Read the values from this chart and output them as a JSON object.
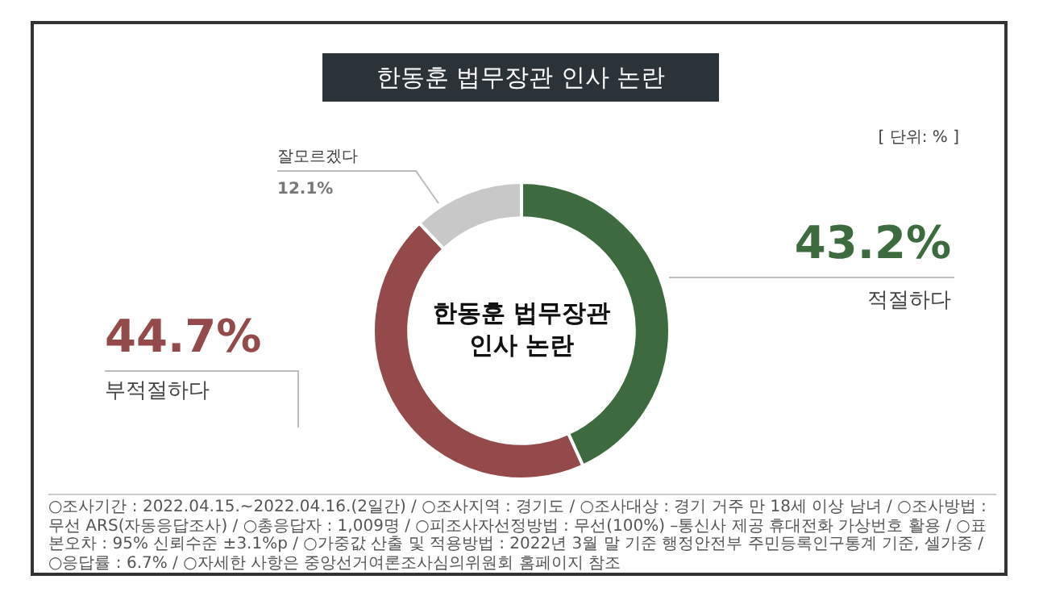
{
  "chart_data": {
    "type": "donut",
    "title": "한동훈 법무장관 인사 논란",
    "categories": [
      "적절하다",
      "부적절하다",
      "잘모르겠다"
    ],
    "values": [
      43.2,
      44.7,
      12.1
    ],
    "colors": [
      "#3d6b3f",
      "#944a4a",
      "#c8c8c8"
    ],
    "value_labels": [
      "43.2%",
      "44.7%",
      "12.1%"
    ],
    "legend": false,
    "annotations": [
      "[ 단위: % ]",
      "한동훈 법무장관\n인사 논란",
      "○조사기간 : 2022.04.15.~2022.04.16.(2일간) / ○조사지역 : 경기도 / ○조사대상 : 경기 거주 만 18세 이상 남녀 / ○조사방법 : 무선 ARS(자동응답조사) / ○총응답자 : 1,009명 / ○피조사자선정방법 : 무선(100%) –통신사 제공 휴대전화 가상번호 활용 / ○표본오차 : 95% 신뢰수준 ±3.1%p / ○가중값 산출 및 적용방법 : 2022년 3월 말 기준 행정안전부 주민등록인구통계 기준, 셀가중 / ○응답률 : 6.7% / ○자세한 사항은 중앙선거여론조사심의위원회 홈페이지 참조"
    ]
  }
}
